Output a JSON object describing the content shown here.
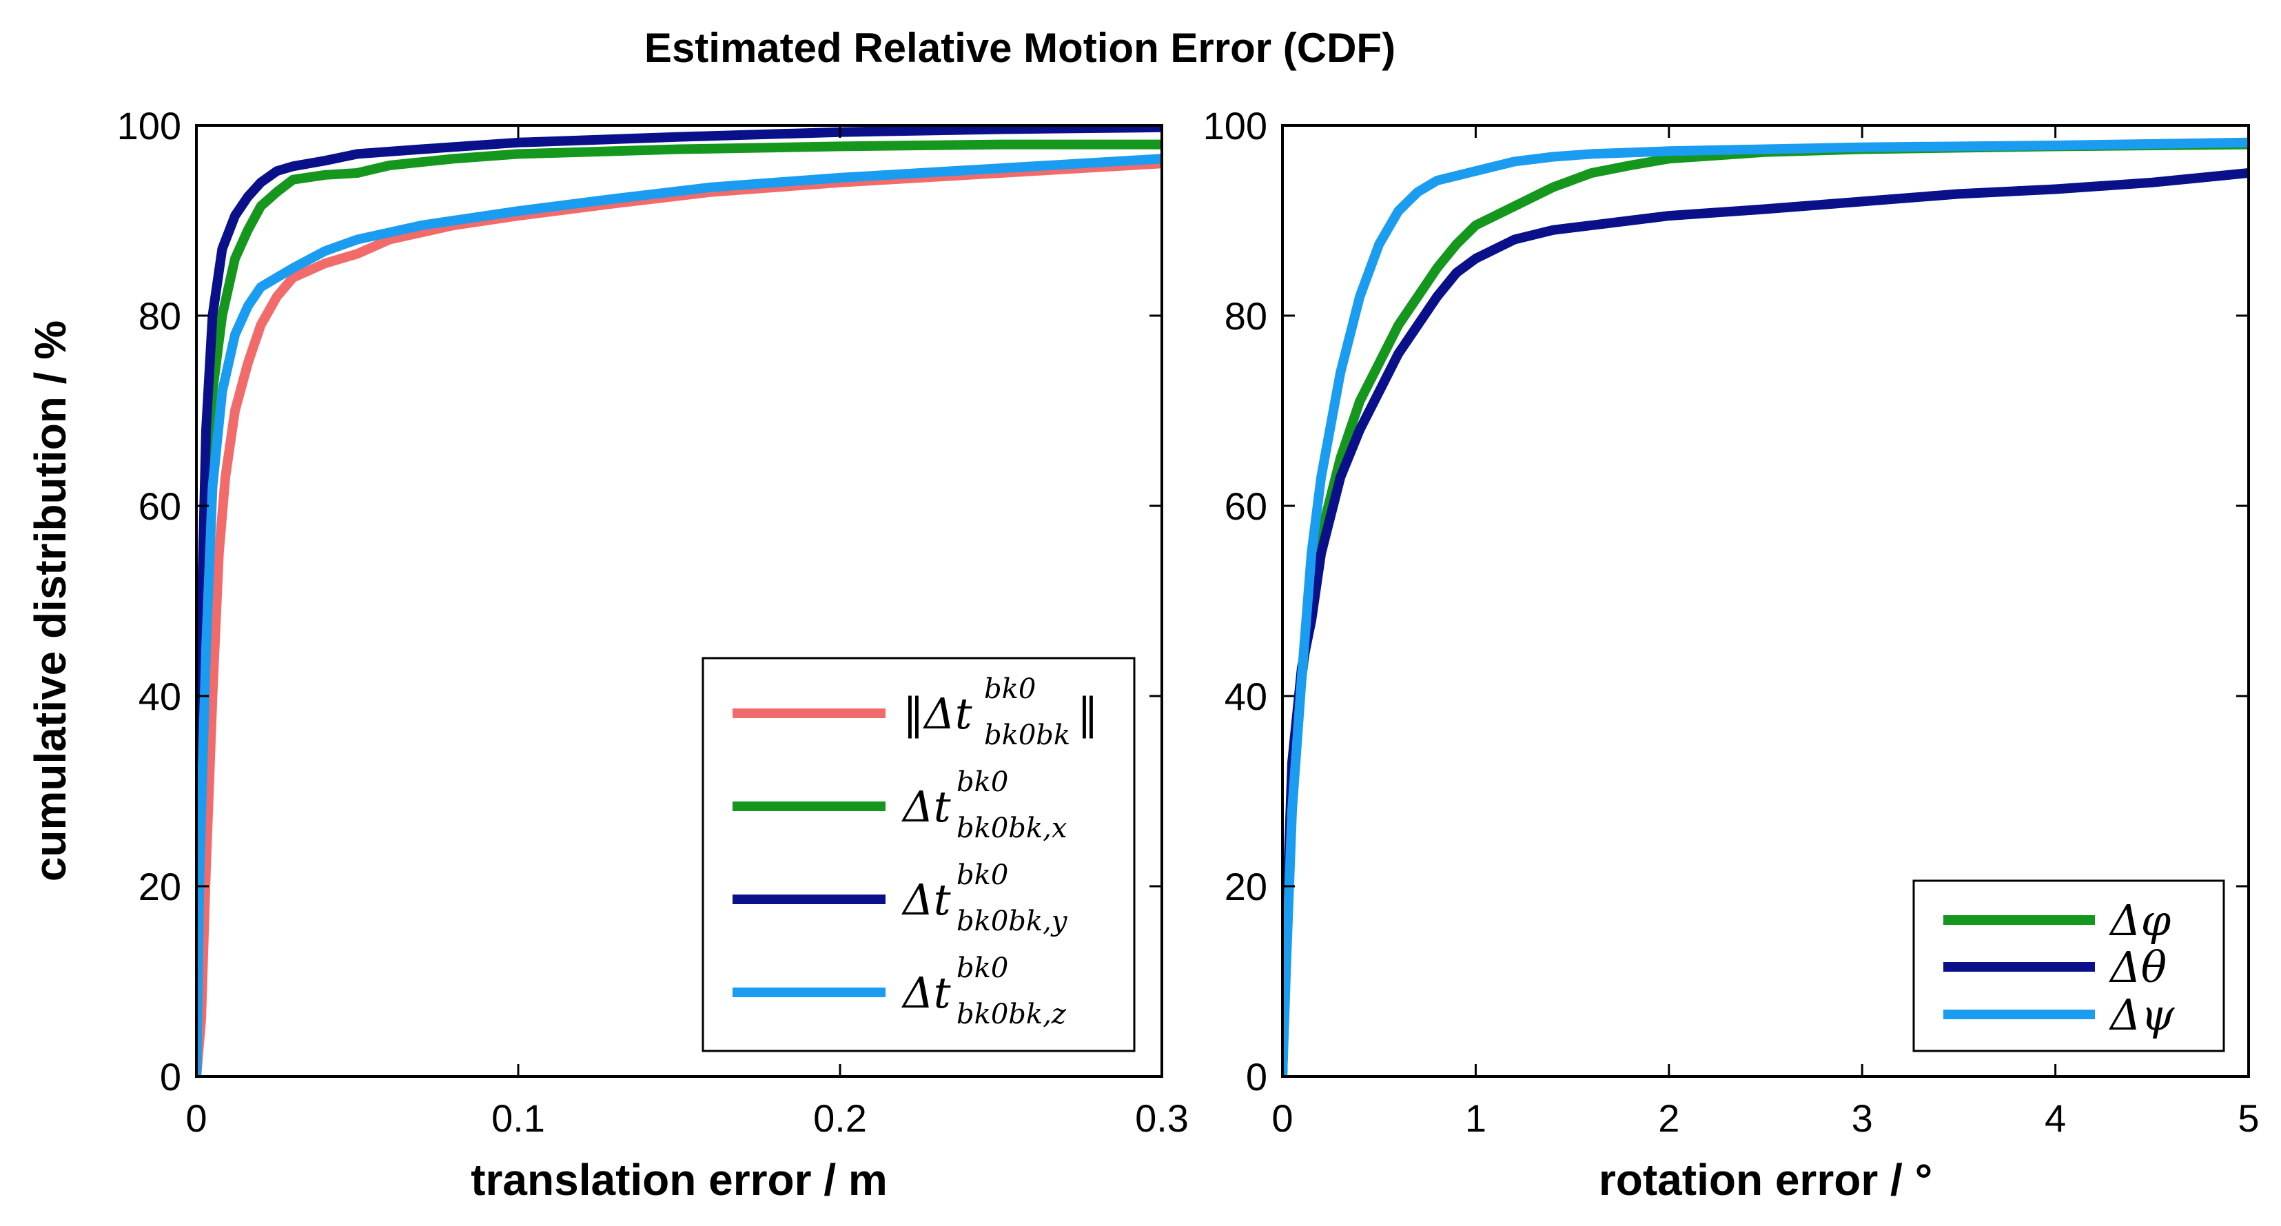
{
  "figure_title": "Estimated Relative Motion Error (CDF)",
  "chart_data": [
    {
      "type": "line",
      "title": "",
      "xlabel": "translation error  /  m",
      "ylabel": "cumulative distribution  /  %",
      "xlim": [
        0,
        0.3
      ],
      "ylim": [
        0,
        100
      ],
      "xticks": [
        0,
        0.1,
        0.2,
        0.3
      ],
      "xtick_labels": [
        "0",
        "0.1",
        "0.2",
        "0.3"
      ],
      "yticks": [
        0,
        20,
        40,
        60,
        80,
        100
      ],
      "ytick_labels": [
        "0",
        "20",
        "40",
        "60",
        "80",
        "100"
      ],
      "legend_position": "bottom-right",
      "series": [
        {
          "name": "‖Δt‖ (norm)",
          "legend_main": "‖Δt",
          "legend_close": "‖",
          "legend_sup": "bk0",
          "legend_sub": "bk0bk",
          "color": "#f26b6b",
          "points": [
            [
              0,
              0
            ],
            [
              0.0015,
              6
            ],
            [
              0.003,
              22
            ],
            [
              0.005,
              40
            ],
            [
              0.007,
              55
            ],
            [
              0.009,
              63
            ],
            [
              0.012,
              70
            ],
            [
              0.016,
              75
            ],
            [
              0.02,
              79
            ],
            [
              0.025,
              82
            ],
            [
              0.03,
              84
            ],
            [
              0.04,
              85.5
            ],
            [
              0.05,
              86.5
            ],
            [
              0.06,
              88
            ],
            [
              0.08,
              89.5
            ],
            [
              0.1,
              90.5
            ],
            [
              0.13,
              91.8
            ],
            [
              0.16,
              93
            ],
            [
              0.2,
              94
            ],
            [
              0.25,
              95
            ],
            [
              0.3,
              96
            ]
          ]
        },
        {
          "name": "Δt x",
          "legend_main": "Δt",
          "legend_sup": "bk0",
          "legend_sub": "bk0bk,x",
          "color": "#15961d",
          "points": [
            [
              0,
              0
            ],
            [
              0.001,
              25
            ],
            [
              0.003,
              55
            ],
            [
              0.005,
              72
            ],
            [
              0.008,
              80
            ],
            [
              0.012,
              86
            ],
            [
              0.016,
              89
            ],
            [
              0.02,
              91.5
            ],
            [
              0.025,
              93
            ],
            [
              0.03,
              94.3
            ],
            [
              0.04,
              94.8
            ],
            [
              0.05,
              95
            ],
            [
              0.06,
              95.8
            ],
            [
              0.08,
              96.5
            ],
            [
              0.1,
              97
            ],
            [
              0.15,
              97.5
            ],
            [
              0.2,
              97.8
            ],
            [
              0.25,
              98
            ],
            [
              0.3,
              98
            ]
          ]
        },
        {
          "name": "Δt y",
          "legend_main": "Δt",
          "legend_sup": "bk0",
          "legend_sub": "bk0bk,y",
          "color": "#0a0f8a",
          "points": [
            [
              0,
              0
            ],
            [
              0.001,
              40
            ],
            [
              0.003,
              68
            ],
            [
              0.005,
              80
            ],
            [
              0.008,
              87
            ],
            [
              0.012,
              90.5
            ],
            [
              0.016,
              92.5
            ],
            [
              0.02,
              94
            ],
            [
              0.025,
              95.2
            ],
            [
              0.03,
              95.7
            ],
            [
              0.04,
              96.3
            ],
            [
              0.05,
              97
            ],
            [
              0.07,
              97.5
            ],
            [
              0.1,
              98.2
            ],
            [
              0.15,
              98.8
            ],
            [
              0.2,
              99.3
            ],
            [
              0.25,
              99.6
            ],
            [
              0.3,
              99.8
            ]
          ]
        },
        {
          "name": "Δt z",
          "legend_main": "Δt",
          "legend_sup": "bk0",
          "legend_sub": "bk0bk,z",
          "color": "#1a9cf0",
          "points": [
            [
              0,
              0
            ],
            [
              0.001,
              22
            ],
            [
              0.003,
              45
            ],
            [
              0.005,
              62
            ],
            [
              0.008,
              72
            ],
            [
              0.012,
              78
            ],
            [
              0.016,
              81
            ],
            [
              0.02,
              83
            ],
            [
              0.03,
              85
            ],
            [
              0.04,
              86.8
            ],
            [
              0.05,
              88
            ],
            [
              0.07,
              89.5
            ],
            [
              0.1,
              91
            ],
            [
              0.13,
              92.3
            ],
            [
              0.16,
              93.5
            ],
            [
              0.2,
              94.5
            ],
            [
              0.25,
              95.5
            ],
            [
              0.3,
              96.5
            ]
          ]
        }
      ]
    },
    {
      "type": "line",
      "title": "",
      "xlabel": "rotation error  /  °",
      "ylabel": "",
      "xlim": [
        0,
        5
      ],
      "ylim": [
        0,
        100
      ],
      "xticks": [
        0,
        1,
        2,
        3,
        4,
        5
      ],
      "xtick_labels": [
        "0",
        "1",
        "2",
        "3",
        "4",
        "5"
      ],
      "yticks": [
        0,
        20,
        40,
        60,
        80,
        100
      ],
      "ytick_labels": [
        "0",
        "20",
        "40",
        "60",
        "80",
        "100"
      ],
      "legend_position": "bottom-right",
      "series": [
        {
          "name": "Δφ",
          "legend_main": "Δφ",
          "color": "#15961d",
          "points": [
            [
              0,
              0
            ],
            [
              0.02,
              15
            ],
            [
              0.05,
              30
            ],
            [
              0.1,
              42
            ],
            [
              0.15,
              50
            ],
            [
              0.2,
              57
            ],
            [
              0.3,
              65
            ],
            [
              0.4,
              71
            ],
            [
              0.5,
              75
            ],
            [
              0.6,
              79
            ],
            [
              0.7,
              82
            ],
            [
              0.8,
              85
            ],
            [
              0.9,
              87.5
            ],
            [
              1,
              89.5
            ],
            [
              1.2,
              91.5
            ],
            [
              1.4,
              93.5
            ],
            [
              1.6,
              95
            ],
            [
              1.8,
              95.8
            ],
            [
              2,
              96.5
            ],
            [
              2.5,
              97.2
            ],
            [
              3,
              97.5
            ],
            [
              4,
              97.8
            ],
            [
              5,
              98
            ]
          ]
        },
        {
          "name": "Δθ",
          "legend_main": "Δθ",
          "color": "#0a0f8a",
          "points": [
            [
              0,
              0
            ],
            [
              0.02,
              16
            ],
            [
              0.05,
              33
            ],
            [
              0.1,
              43
            ],
            [
              0.15,
              48
            ],
            [
              0.2,
              55
            ],
            [
              0.3,
              63
            ],
            [
              0.4,
              68
            ],
            [
              0.5,
              72
            ],
            [
              0.6,
              76
            ],
            [
              0.7,
              79
            ],
            [
              0.8,
              82
            ],
            [
              0.9,
              84.5
            ],
            [
              1,
              86
            ],
            [
              1.2,
              88
            ],
            [
              1.4,
              89
            ],
            [
              1.6,
              89.5
            ],
            [
              1.8,
              90
            ],
            [
              2,
              90.5
            ],
            [
              2.5,
              91.2
            ],
            [
              3,
              92
            ],
            [
              3.5,
              92.8
            ],
            [
              4,
              93.3
            ],
            [
              4.5,
              94
            ],
            [
              5,
              95
            ]
          ]
        },
        {
          "name": "Δψ",
          "legend_main": "Δψ",
          "color": "#1a9cf0",
          "points": [
            [
              0,
              0
            ],
            [
              0.02,
              12
            ],
            [
              0.05,
              28
            ],
            [
              0.1,
              42
            ],
            [
              0.15,
              55
            ],
            [
              0.2,
              63
            ],
            [
              0.3,
              74
            ],
            [
              0.4,
              82
            ],
            [
              0.5,
              87.5
            ],
            [
              0.6,
              91
            ],
            [
              0.7,
              93
            ],
            [
              0.8,
              94.2
            ],
            [
              1,
              95.2
            ],
            [
              1.2,
              96.2
            ],
            [
              1.4,
              96.7
            ],
            [
              1.6,
              97
            ],
            [
              2,
              97.3
            ],
            [
              2.5,
              97.5
            ],
            [
              3,
              97.7
            ],
            [
              4,
              97.9
            ],
            [
              5,
              98.2
            ]
          ]
        }
      ]
    }
  ]
}
